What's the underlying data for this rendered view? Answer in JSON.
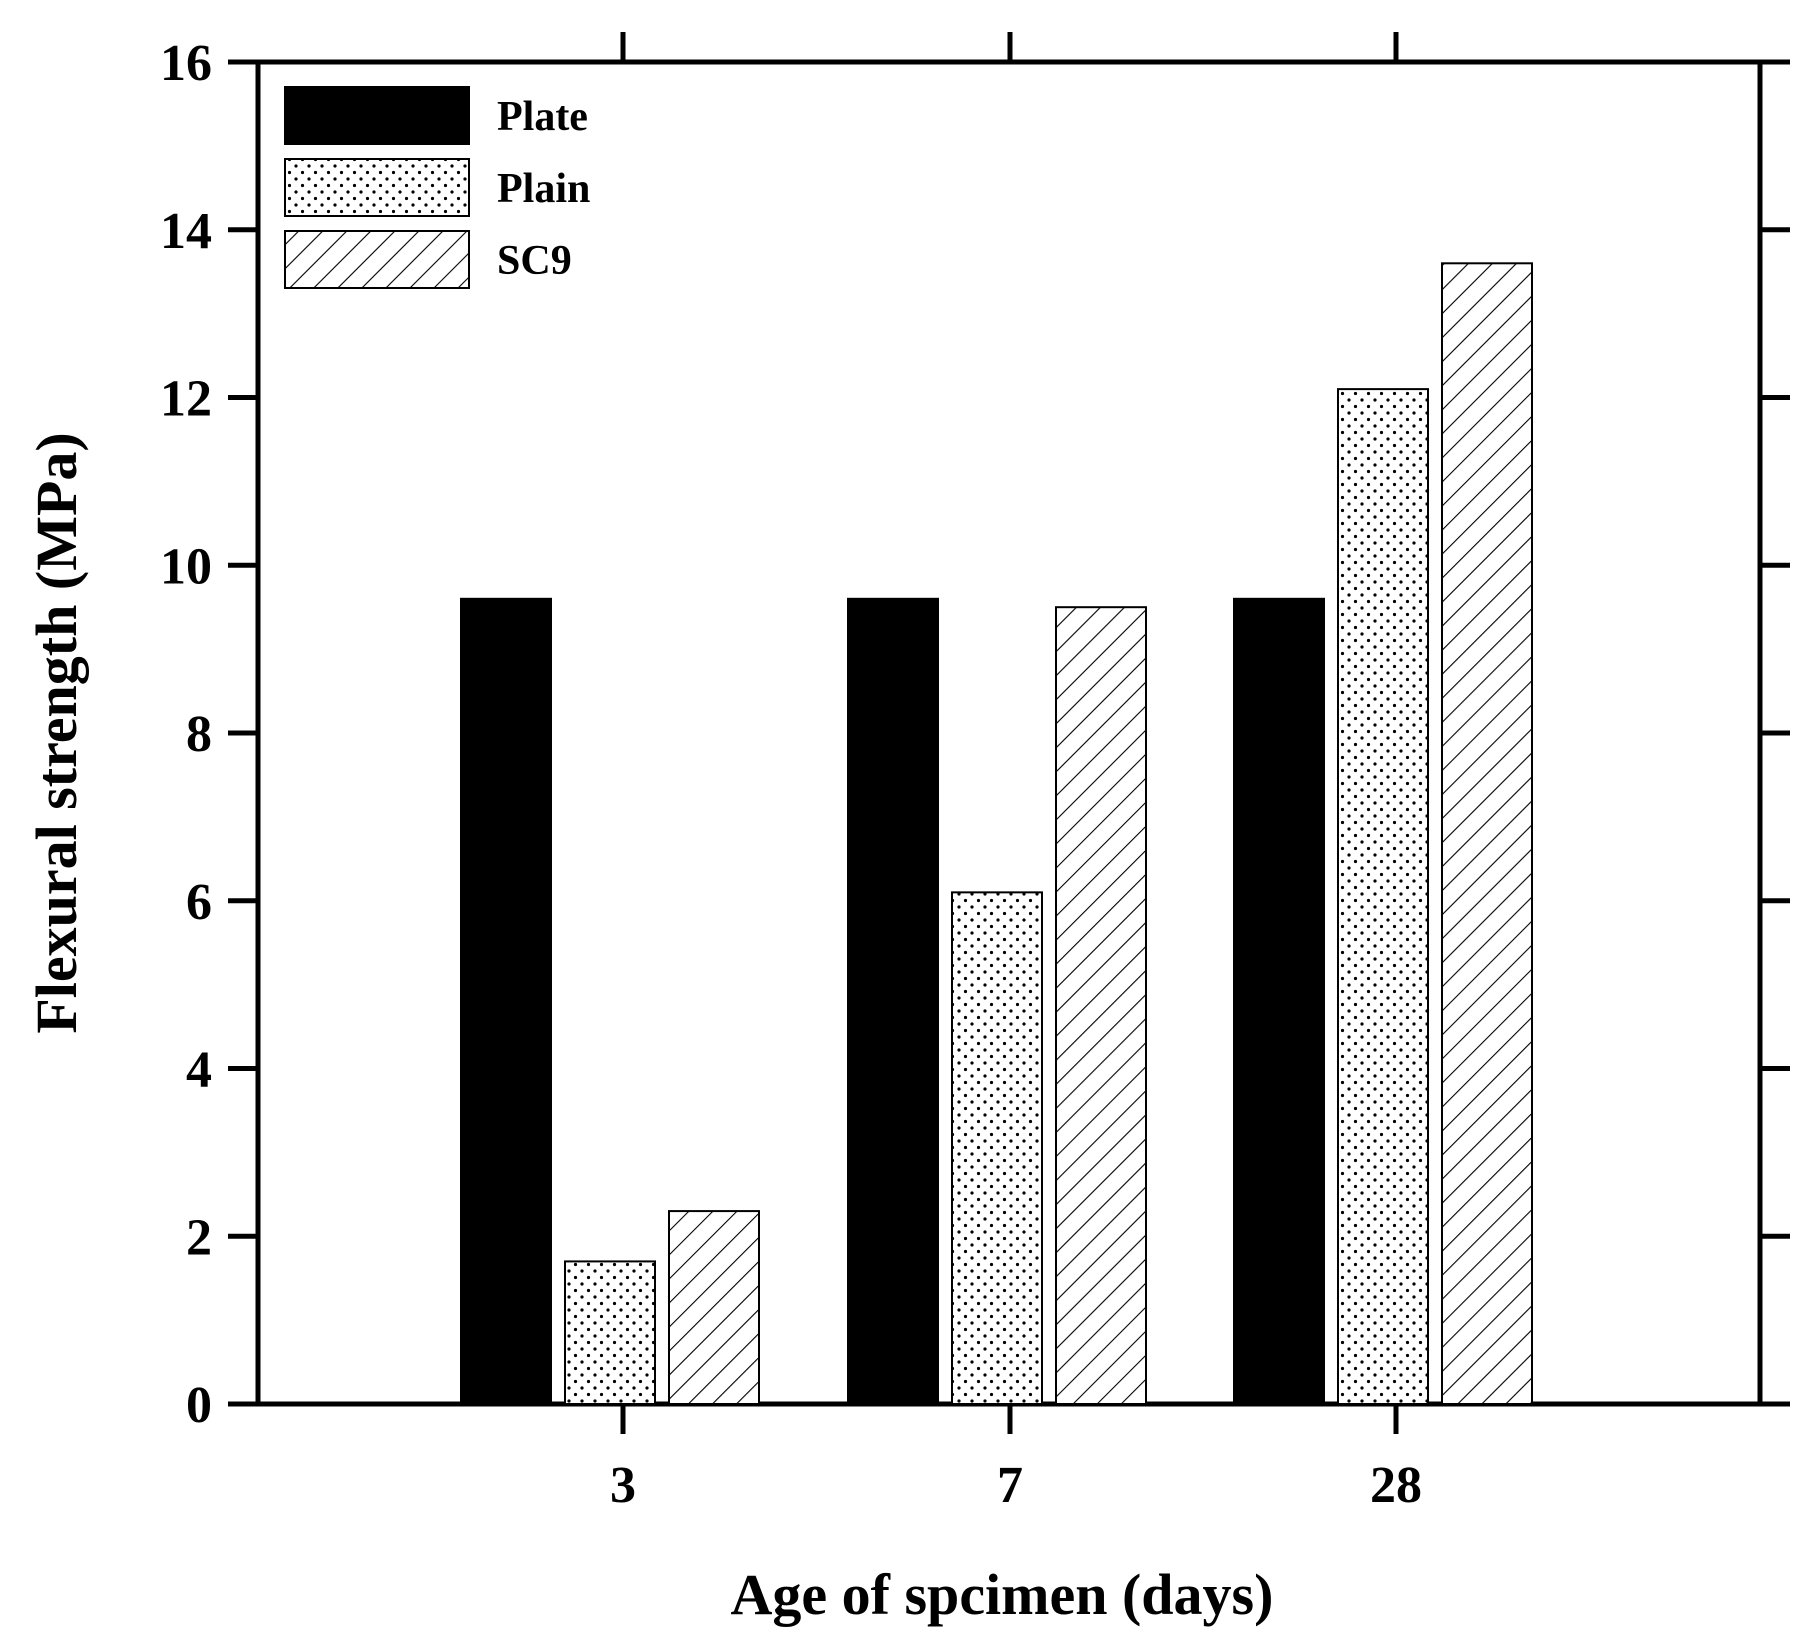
{
  "chart_data": {
    "type": "bar",
    "title": "",
    "xlabel": "Age of spcimen (days)",
    "ylabel": "Flexural strength (MPa)",
    "categories": [
      "3",
      "7",
      "28"
    ],
    "series": [
      {
        "name": "Plate",
        "values": [
          9.6,
          9.6,
          9.6
        ],
        "fill": "solid"
      },
      {
        "name": "Plain",
        "values": [
          1.7,
          6.1,
          12.1
        ],
        "fill": "dots"
      },
      {
        "name": "SC9",
        "values": [
          2.3,
          9.5,
          13.6
        ],
        "fill": "hatch"
      }
    ],
    "ylim": [
      0,
      16
    ],
    "yticks": [
      "0",
      "2",
      "4",
      "6",
      "8",
      "10",
      "12",
      "14",
      "16"
    ],
    "grid": false,
    "legend_position": "top-left"
  }
}
